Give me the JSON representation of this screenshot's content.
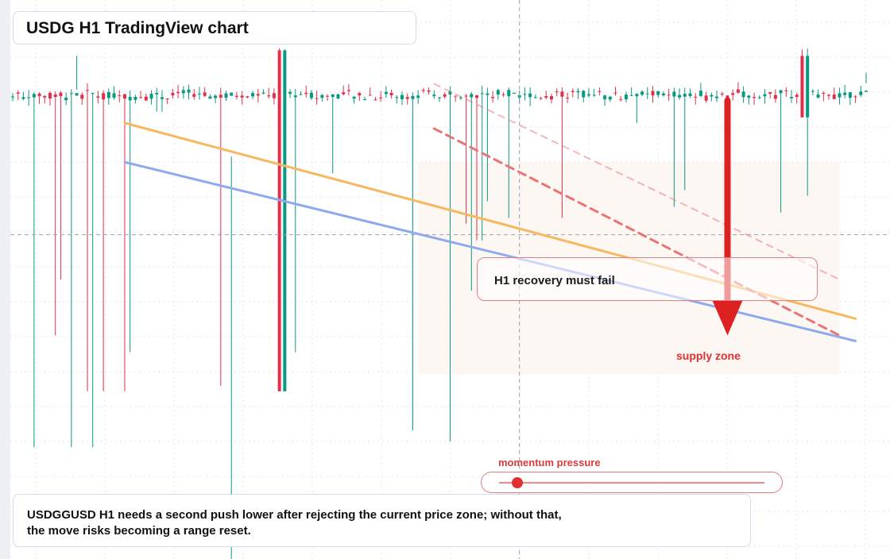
{
  "title": "USDG H1 TradingView chart",
  "callout": "H1 recovery must fail",
  "supply_label": "supply zone",
  "momentum": {
    "label": "momentum pressure",
    "level": 0.07
  },
  "summary": {
    "line1": "USDGGUSD H1 needs a second push lower after rejecting the current price zone; without that,",
    "line2": "the move risks becoming a range reset."
  },
  "colors": {
    "up": "#089981",
    "down": "#e0304a",
    "trend_orange": "#f6b85f",
    "trend_blue": "#8fa9ef",
    "bearish_dashed": "#e87474",
    "arrow": "#dd2020",
    "grid": "#e3e6eb"
  },
  "chart_data": {
    "type": "candlestick",
    "timeframe": "H1",
    "symbol": "USDGGUSD",
    "title": "USDG H1 TradingView chart",
    "xlim": [
      0,
      160
    ],
    "ylim": [
      0,
      100
    ],
    "candles_summary": "very flat price near the top of the chart with long lower wicks",
    "spikes": [
      {
        "i": 4,
        "dir": "up",
        "low": 20
      },
      {
        "i": 8,
        "dir": "down",
        "low": 40
      },
      {
        "i": 9,
        "dir": "down",
        "low": 50
      },
      {
        "i": 11,
        "dir": "up",
        "low": 20
      },
      {
        "i": 12,
        "dir": "up",
        "low": 90
      },
      {
        "i": 14,
        "dir": "down",
        "low": 30
      },
      {
        "i": 15,
        "dir": "up",
        "low": 20
      },
      {
        "i": 17,
        "dir": "down",
        "low": 30
      },
      {
        "i": 21,
        "dir": "down",
        "low": 30
      },
      {
        "i": 22,
        "dir": "up",
        "low": 37
      },
      {
        "i": 27,
        "dir": "up",
        "low": 80
      },
      {
        "i": 28,
        "dir": "up",
        "low": 80
      },
      {
        "i": 39,
        "dir": "down",
        "low": 31
      },
      {
        "i": 41,
        "dir": "up",
        "low": -5,
        "high": 72
      },
      {
        "i": 50,
        "dir": "down",
        "low": 30,
        "open": 91,
        "close": 30
      },
      {
        "i": 51,
        "dir": "up",
        "low": 30,
        "open": 30,
        "close": 91
      },
      {
        "i": 53,
        "dir": "up",
        "low": 37
      },
      {
        "i": 60,
        "dir": "up",
        "low": 69
      },
      {
        "i": 75,
        "dir": "up",
        "low": 23
      },
      {
        "i": 82,
        "dir": "up",
        "low": 21
      },
      {
        "i": 85,
        "dir": "down",
        "low": 60
      },
      {
        "i": 86,
        "dir": "up",
        "low": 48
      },
      {
        "i": 87,
        "dir": "down",
        "low": 57
      },
      {
        "i": 88,
        "dir": "up",
        "low": 57
      },
      {
        "i": 89,
        "dir": "up",
        "low": 64
      },
      {
        "i": 93,
        "dir": "up",
        "low": 61
      },
      {
        "i": 94,
        "dir": "up",
        "low": 100,
        "high": 100
      },
      {
        "i": 97,
        "dir": "up",
        "low": 81
      },
      {
        "i": 103,
        "dir": "down",
        "low": 61
      },
      {
        "i": 117,
        "dir": "up",
        "low": 78
      },
      {
        "i": 124,
        "dir": "up",
        "low": 63
      },
      {
        "i": 126,
        "dir": "up",
        "low": 66
      },
      {
        "i": 144,
        "dir": "up",
        "low": 62
      },
      {
        "i": 148,
        "dir": "down",
        "low": 79,
        "open": 90,
        "close": 79
      },
      {
        "i": 149,
        "dir": "up",
        "low": 65,
        "open": 79,
        "close": 90
      },
      {
        "i": 160,
        "dir": "up",
        "low": 87
      }
    ],
    "trendlines": [
      {
        "name": "",
        "color": "orange",
        "style": "solid",
        "from": [
          21,
          78
        ],
        "to": [
          158,
          43
        ]
      },
      {
        "name": "",
        "color": "blue",
        "style": "solid",
        "from": [
          21,
          71
        ],
        "to": [
          158,
          39
        ]
      },
      {
        "name": "",
        "color": "red",
        "style": "dashed",
        "from": [
          79,
          77
        ],
        "to": [
          155,
          40
        ]
      },
      {
        "name": "",
        "color": "red-faded",
        "style": "dashed",
        "from": [
          79,
          85
        ],
        "to": [
          155,
          50
        ]
      }
    ],
    "annotations": [
      "H1 recovery must fail",
      "supply zone",
      "momentum pressure"
    ],
    "arrow": {
      "direction": "down",
      "x": 134,
      "from": 82,
      "to": 40
    },
    "grid": true,
    "crosshair": {
      "x": 95,
      "y": 58
    }
  }
}
